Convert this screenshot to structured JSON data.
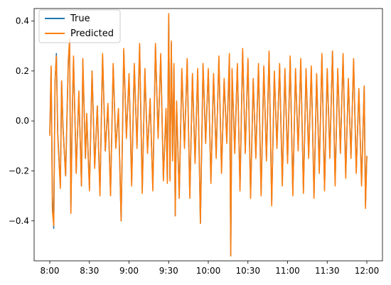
{
  "chart_data": {
    "type": "line",
    "title": "",
    "xlabel": "",
    "ylabel": "",
    "x_start": "8:00",
    "x_end": "12:00",
    "x_ticks": [
      "8:00",
      "8:30",
      "9:00",
      "9:30",
      "10:00",
      "10:30",
      "11:00",
      "11:30",
      "12:00"
    ],
    "ylim": [
      -0.56,
      0.45
    ],
    "y_ticks": [
      0.4,
      0.2,
      0.0,
      -0.2,
      -0.4
    ],
    "y_tick_labels": [
      "0.4",
      "0.2",
      "0.0",
      "−0.2",
      "−0.4"
    ],
    "grid": false,
    "legend": "top-left",
    "series": [
      {
        "name": "True",
        "color": "#1f77b4",
        "points": [
          [
            "8:00",
            -0.05
          ],
          [
            "8:01",
            0.21
          ],
          [
            "8:02",
            -0.3
          ],
          [
            "8:03",
            -0.43
          ],
          [
            "8:04",
            0.15
          ],
          [
            "8:05",
            0.27
          ],
          [
            "8:06",
            -0.05
          ],
          [
            "8:08",
            -0.26
          ],
          [
            "8:09",
            0.16
          ],
          [
            "8:10",
            -0.02
          ],
          [
            "8:12",
            -0.22
          ],
          [
            "8:14",
            0.23
          ],
          [
            "8:15",
            0.32
          ],
          [
            "8:16",
            -0.36
          ],
          [
            "8:17",
            0.02
          ],
          [
            "8:18",
            0.25
          ],
          [
            "8:20",
            -0.2
          ],
          [
            "8:22",
            0.11
          ],
          [
            "8:24",
            -0.26
          ],
          [
            "8:25",
            0.24
          ],
          [
            "8:27",
            -0.15
          ],
          [
            "8:28",
            0.02
          ],
          [
            "8:30",
            -0.27
          ],
          [
            "8:32",
            0.2
          ],
          [
            "8:34",
            -0.18
          ],
          [
            "8:36",
            0.06
          ],
          [
            "8:38",
            -0.29
          ],
          [
            "8:40",
            0.26
          ],
          [
            "8:42",
            -0.12
          ],
          [
            "8:44",
            0.06
          ],
          [
            "8:46",
            -0.29
          ],
          [
            "8:48",
            0.22
          ],
          [
            "8:50",
            -0.1
          ],
          [
            "8:52",
            0.04
          ],
          [
            "8:54",
            -0.4
          ],
          [
            "8:56",
            0.28
          ],
          [
            "8:58",
            -0.06
          ],
          [
            "9:00",
            0.18
          ],
          [
            "9:02",
            -0.25
          ],
          [
            "9:04",
            0.22
          ],
          [
            "9:06",
            -0.1
          ],
          [
            "9:08",
            0.3
          ],
          [
            "9:10",
            -0.28
          ],
          [
            "9:12",
            0.2
          ],
          [
            "9:14",
            -0.12
          ],
          [
            "9:16",
            0.08
          ],
          [
            "9:18",
            -0.27
          ],
          [
            "9:20",
            0.3
          ],
          [
            "9:22",
            -0.06
          ],
          [
            "9:24",
            0.26
          ],
          [
            "9:26",
            -0.23
          ],
          [
            "9:28",
            0.04
          ],
          [
            "9:29",
            -0.24
          ],
          [
            "9:30",
            0.42
          ],
          [
            "9:31",
            -0.23
          ],
          [
            "9:32",
            0.31
          ],
          [
            "9:33",
            -0.15
          ],
          [
            "9:34",
            0.22
          ],
          [
            "9:35",
            -0.38
          ],
          [
            "9:36",
            0.07
          ],
          [
            "9:38",
            -0.3
          ],
          [
            "9:40",
            0.2
          ],
          [
            "9:42",
            -0.1
          ],
          [
            "9:44",
            0.24
          ],
          [
            "9:46",
            -0.3
          ],
          [
            "9:48",
            0.18
          ],
          [
            "9:50",
            -0.16
          ],
          [
            "9:52",
            0.2
          ],
          [
            "9:54",
            -0.41
          ],
          [
            "9:56",
            0.22
          ],
          [
            "9:58",
            -0.08
          ],
          [
            "10:00",
            0.2
          ],
          [
            "10:02",
            -0.24
          ],
          [
            "10:04",
            0.18
          ],
          [
            "10:06",
            -0.14
          ],
          [
            "10:08",
            0.25
          ],
          [
            "10:10",
            -0.2
          ],
          [
            "10:12",
            0.16
          ],
          [
            "10:14",
            -0.08
          ],
          [
            "10:16",
            0.26
          ],
          [
            "10:17",
            -0.54
          ],
          [
            "10:18",
            0.2
          ],
          [
            "10:20",
            -0.12
          ],
          [
            "10:22",
            0.22
          ],
          [
            "10:24",
            -0.27
          ],
          [
            "10:26",
            0.28
          ],
          [
            "10:28",
            -0.12
          ],
          [
            "10:30",
            0.24
          ],
          [
            "10:32",
            -0.3
          ],
          [
            "10:34",
            0.16
          ],
          [
            "10:36",
            -0.14
          ],
          [
            "10:38",
            0.22
          ],
          [
            "10:40",
            -0.29
          ],
          [
            "10:42",
            0.21
          ],
          [
            "10:44",
            -0.15
          ],
          [
            "10:46",
            0.27
          ],
          [
            "10:48",
            -0.33
          ],
          [
            "10:50",
            0.19
          ],
          [
            "10:52",
            -0.1
          ],
          [
            "10:54",
            0.22
          ],
          [
            "10:56",
            -0.25
          ],
          [
            "10:58",
            0.2
          ],
          [
            "11:00",
            -0.16
          ],
          [
            "11:02",
            0.25
          ],
          [
            "11:04",
            -0.29
          ],
          [
            "11:06",
            0.2
          ],
          [
            "11:08",
            -0.11
          ],
          [
            "11:10",
            0.24
          ],
          [
            "11:12",
            -0.28
          ],
          [
            "11:14",
            0.2
          ],
          [
            "11:16",
            -0.14
          ],
          [
            "11:18",
            0.21
          ],
          [
            "11:20",
            -0.3
          ],
          [
            "11:22",
            0.18
          ],
          [
            "11:24",
            -0.2
          ],
          [
            "11:26",
            0.26
          ],
          [
            "11:28",
            -0.27
          ],
          [
            "11:30",
            0.2
          ],
          [
            "11:32",
            -0.14
          ],
          [
            "11:34",
            0.28
          ],
          [
            "11:36",
            -0.25
          ],
          [
            "11:38",
            0.2
          ],
          [
            "11:40",
            -0.12
          ],
          [
            "11:42",
            0.26
          ],
          [
            "11:44",
            -0.22
          ],
          [
            "11:46",
            0.16
          ],
          [
            "11:48",
            -0.14
          ],
          [
            "11:50",
            0.24
          ],
          [
            "11:52",
            -0.2
          ],
          [
            "11:54",
            0.12
          ],
          [
            "11:56",
            -0.25
          ],
          [
            "11:58",
            0.14
          ],
          [
            "11:59",
            -0.34
          ],
          [
            "12:00",
            -0.14
          ]
        ]
      },
      {
        "name": "Predicted",
        "color": "#ff7f0e",
        "points": [
          [
            "8:00",
            -0.06
          ],
          [
            "8:01",
            0.22
          ],
          [
            "8:02",
            -0.36
          ],
          [
            "8:03",
            -0.42
          ],
          [
            "8:04",
            0.16
          ],
          [
            "8:05",
            0.26
          ],
          [
            "8:06",
            -0.06
          ],
          [
            "8:08",
            -0.27
          ],
          [
            "8:09",
            0.16
          ],
          [
            "8:10",
            -0.03
          ],
          [
            "8:12",
            -0.22
          ],
          [
            "8:14",
            0.24
          ],
          [
            "8:15",
            0.33
          ],
          [
            "8:16",
            -0.37
          ],
          [
            "8:17",
            0.01
          ],
          [
            "8:18",
            0.26
          ],
          [
            "8:20",
            -0.21
          ],
          [
            "8:22",
            0.12
          ],
          [
            "8:24",
            -0.26
          ],
          [
            "8:25",
            0.25
          ],
          [
            "8:27",
            -0.15
          ],
          [
            "8:28",
            0.03
          ],
          [
            "8:30",
            -0.28
          ],
          [
            "8:32",
            0.2
          ],
          [
            "8:34",
            -0.19
          ],
          [
            "8:36",
            0.06
          ],
          [
            "8:38",
            -0.3
          ],
          [
            "8:40",
            0.27
          ],
          [
            "8:42",
            -0.12
          ],
          [
            "8:44",
            0.07
          ],
          [
            "8:46",
            -0.3
          ],
          [
            "8:48",
            0.23
          ],
          [
            "8:50",
            -0.11
          ],
          [
            "8:52",
            0.05
          ],
          [
            "8:54",
            -0.4
          ],
          [
            "8:56",
            0.29
          ],
          [
            "8:58",
            -0.07
          ],
          [
            "9:00",
            0.19
          ],
          [
            "9:02",
            -0.26
          ],
          [
            "9:04",
            0.23
          ],
          [
            "9:06",
            -0.11
          ],
          [
            "9:08",
            0.31
          ],
          [
            "9:10",
            -0.29
          ],
          [
            "9:12",
            0.21
          ],
          [
            "9:14",
            -0.13
          ],
          [
            "9:16",
            0.09
          ],
          [
            "9:18",
            -0.28
          ],
          [
            "9:20",
            0.31
          ],
          [
            "9:22",
            -0.07
          ],
          [
            "9:24",
            0.27
          ],
          [
            "9:26",
            -0.24
          ],
          [
            "9:28",
            0.05
          ],
          [
            "9:29",
            -0.25
          ],
          [
            "9:30",
            0.43
          ],
          [
            "9:31",
            -0.24
          ],
          [
            "9:32",
            0.32
          ],
          [
            "9:33",
            -0.16
          ],
          [
            "9:34",
            0.23
          ],
          [
            "9:35",
            -0.38
          ],
          [
            "9:36",
            0.08
          ],
          [
            "9:38",
            -0.31
          ],
          [
            "9:40",
            0.21
          ],
          [
            "9:42",
            -0.11
          ],
          [
            "9:44",
            0.25
          ],
          [
            "9:46",
            -0.31
          ],
          [
            "9:48",
            0.19
          ],
          [
            "9:50",
            -0.17
          ],
          [
            "9:52",
            0.21
          ],
          [
            "9:54",
            -0.41
          ],
          [
            "9:56",
            0.23
          ],
          [
            "9:58",
            -0.09
          ],
          [
            "10:00",
            0.21
          ],
          [
            "10:02",
            -0.25
          ],
          [
            "10:04",
            0.19
          ],
          [
            "10:06",
            -0.15
          ],
          [
            "10:08",
            0.26
          ],
          [
            "10:10",
            -0.21
          ],
          [
            "10:12",
            0.17
          ],
          [
            "10:14",
            -0.09
          ],
          [
            "10:16",
            0.27
          ],
          [
            "10:17",
            -0.54
          ],
          [
            "10:18",
            0.21
          ],
          [
            "10:20",
            -0.13
          ],
          [
            "10:22",
            0.23
          ],
          [
            "10:24",
            -0.28
          ],
          [
            "10:26",
            0.29
          ],
          [
            "10:28",
            -0.13
          ],
          [
            "10:30",
            0.25
          ],
          [
            "10:32",
            -0.31
          ],
          [
            "10:34",
            0.17
          ],
          [
            "10:36",
            -0.15
          ],
          [
            "10:38",
            0.23
          ],
          [
            "10:40",
            -0.3
          ],
          [
            "10:42",
            0.22
          ],
          [
            "10:44",
            -0.16
          ],
          [
            "10:46",
            0.28
          ],
          [
            "10:48",
            -0.34
          ],
          [
            "10:50",
            0.2
          ],
          [
            "10:52",
            -0.11
          ],
          [
            "10:54",
            0.23
          ],
          [
            "10:56",
            -0.26
          ],
          [
            "10:58",
            0.21
          ],
          [
            "11:00",
            -0.17
          ],
          [
            "11:02",
            0.26
          ],
          [
            "11:04",
            -0.3
          ],
          [
            "11:06",
            0.21
          ],
          [
            "11:08",
            -0.12
          ],
          [
            "11:10",
            0.25
          ],
          [
            "11:12",
            -0.29
          ],
          [
            "11:14",
            0.21
          ],
          [
            "11:16",
            -0.15
          ],
          [
            "11:18",
            0.22
          ],
          [
            "11:20",
            -0.31
          ],
          [
            "11:22",
            0.19
          ],
          [
            "11:24",
            -0.21
          ],
          [
            "11:26",
            0.27
          ],
          [
            "11:28",
            -0.28
          ],
          [
            "11:30",
            0.21
          ],
          [
            "11:32",
            -0.15
          ],
          [
            "11:34",
            0.28
          ],
          [
            "11:36",
            -0.26
          ],
          [
            "11:38",
            0.21
          ],
          [
            "11:40",
            -0.13
          ],
          [
            "11:42",
            0.27
          ],
          [
            "11:44",
            -0.23
          ],
          [
            "11:46",
            0.17
          ],
          [
            "11:48",
            -0.15
          ],
          [
            "11:50",
            0.25
          ],
          [
            "11:52",
            -0.21
          ],
          [
            "11:54",
            0.13
          ],
          [
            "11:56",
            -0.26
          ],
          [
            "11:58",
            0.14
          ],
          [
            "11:59",
            -0.35
          ],
          [
            "12:00",
            -0.14
          ]
        ]
      }
    ]
  }
}
